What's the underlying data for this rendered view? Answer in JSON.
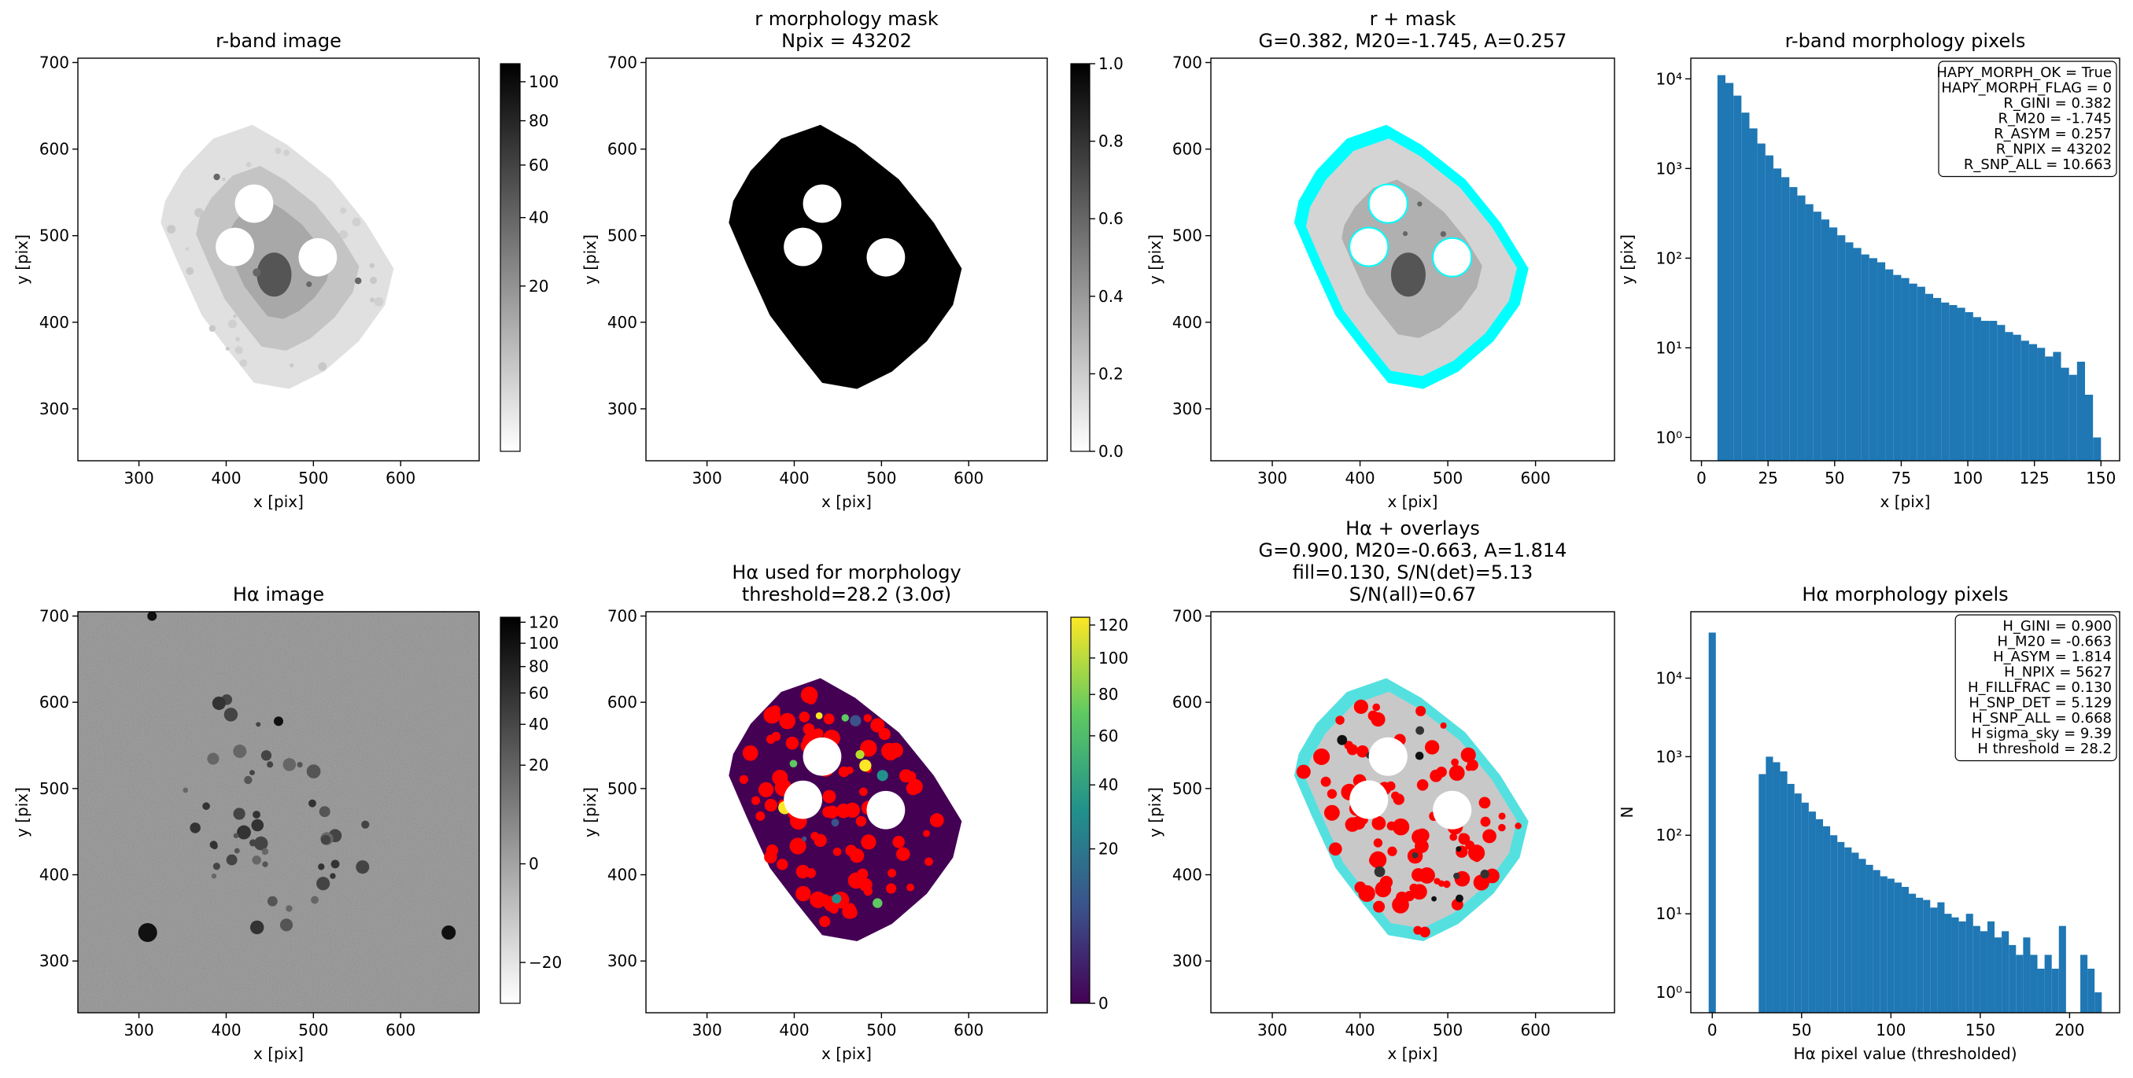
{
  "chart_data": [
    {
      "type": "image",
      "title": [
        "r-band image"
      ],
      "xlabel": "x [pix]",
      "ylabel": "y [pix]",
      "xlim": [
        230,
        690
      ],
      "ylim": [
        240,
        705
      ],
      "xticks": [
        300,
        400,
        500,
        600
      ],
      "yticks": [
        300,
        400,
        500,
        600,
        700
      ],
      "cmap": "gray_r",
      "cscale": "sqrt",
      "clim": [
        0,
        110
      ],
      "cticks": [
        20,
        40,
        60,
        80,
        100
      ]
    },
    {
      "type": "image",
      "title": [
        "r morphology mask",
        "Npix = 43202"
      ],
      "xlabel": "x [pix]",
      "ylabel": "y [pix]",
      "xlim": [
        230,
        690
      ],
      "ylim": [
        240,
        705
      ],
      "xticks": [
        300,
        400,
        500,
        600
      ],
      "yticks": [
        300,
        400,
        500,
        600,
        700
      ],
      "cmap": "gray_r",
      "cscale": "linear",
      "clim": [
        0,
        1
      ],
      "cticks": [
        {
          "value": 0,
          "label": "0.0"
        },
        0.2,
        0.4,
        0.6,
        0.8,
        {
          "value": 1,
          "label": "1.0"
        }
      ]
    },
    {
      "type": "image",
      "title": [
        "r + mask",
        "G=0.382, M20=-1.745, A=0.257"
      ],
      "xlabel": "x [pix]",
      "ylabel": "y [pix]",
      "xlim": [
        230,
        690
      ],
      "ylim": [
        240,
        705
      ],
      "xticks": [
        300,
        400,
        500,
        600
      ],
      "yticks": [
        300,
        400,
        500,
        600,
        700
      ],
      "overlay_color": "#00ffff"
    },
    {
      "type": "histogram",
      "title": [
        "r-band morphology pixels"
      ],
      "xlabel": "x [pix]",
      "ylabel": "y [pix]",
      "color": "#1f77b4",
      "log_y": true,
      "xlim": [
        -4,
        157
      ],
      "ylim": [
        0.55,
        17000
      ],
      "xticks": [
        0,
        25,
        50,
        75,
        100,
        125,
        150
      ],
      "yticks": [
        {
          "value": 1,
          "label": "10⁰"
        },
        {
          "value": 10,
          "label": "10¹"
        },
        {
          "value": 100,
          "label": "10²"
        },
        {
          "value": 1000,
          "label": "10³"
        },
        {
          "value": 10000,
          "label": "10⁴"
        }
      ],
      "bins": [
        6,
        9,
        12,
        15,
        18,
        21,
        24,
        27,
        30,
        33,
        36,
        39,
        42,
        45,
        48,
        51,
        54,
        57,
        60,
        63,
        66,
        69,
        72,
        75,
        78,
        81,
        84,
        87,
        90,
        93,
        96,
        99,
        102,
        105,
        108,
        111,
        114,
        117,
        120,
        123,
        126,
        129,
        132,
        135,
        138,
        141,
        144,
        147,
        150
      ],
      "counts": [
        11000,
        9000,
        6500,
        4200,
        2800,
        1900,
        1400,
        1000,
        800,
        620,
        500,
        400,
        330,
        270,
        220,
        180,
        150,
        130,
        110,
        100,
        90,
        75,
        65,
        60,
        52,
        48,
        40,
        36,
        32,
        30,
        28,
        25,
        22,
        20,
        20,
        18,
        15,
        14,
        12,
        11,
        10,
        8,
        9,
        6,
        5,
        7,
        3,
        1
      ],
      "annotation_lines": [
        "HAPY_MORPH_OK = True",
        "HAPY_MORPH_FLAG = 0",
        "R_GINI = 0.382",
        "R_M20 = -1.745",
        "R_ASYM = 0.257",
        "R_NPIX = 43202",
        "R_SNP_ALL = 10.663"
      ]
    },
    {
      "type": "image",
      "title": [
        "Hα image"
      ],
      "xlabel": "x [pix]",
      "ylabel": "y [pix]",
      "xlim": [
        230,
        690
      ],
      "ylim": [
        240,
        705
      ],
      "xticks": [
        300,
        400,
        500,
        600
      ],
      "yticks": [
        300,
        400,
        500,
        600,
        700
      ],
      "cmap": "gray_r",
      "cscale": "sqrt",
      "clim": [
        -40,
        125
      ],
      "cticks": [
        {
          "value": -20,
          "label": "−20"
        },
        0,
        20,
        40,
        60,
        80,
        100,
        120
      ]
    },
    {
      "type": "image",
      "title": [
        "Hα used for morphology",
        "threshold=28.2 (3.0σ)"
      ],
      "xlabel": "x [pix]",
      "ylabel": "y [pix]",
      "xlim": [
        230,
        690
      ],
      "ylim": [
        240,
        705
      ],
      "xticks": [
        300,
        400,
        500,
        600
      ],
      "yticks": [
        300,
        400,
        500,
        600,
        700
      ],
      "cmap": "viridis",
      "cscale": "sqrt",
      "clim": [
        0,
        125
      ],
      "cticks": [
        0,
        20,
        40,
        60,
        80,
        100,
        120
      ]
    },
    {
      "type": "image",
      "title": [
        "Hα + overlays",
        "G=0.900, M20=-0.663, A=1.814",
        "fill=0.130, S/N(det)=5.13",
        "S/N(all)=0.67"
      ],
      "xlabel": "x [pix]",
      "ylabel": "y [pix]",
      "xlim": [
        230,
        690
      ],
      "ylim": [
        240,
        705
      ],
      "xticks": [
        300,
        400,
        500,
        600
      ],
      "yticks": [
        300,
        400,
        500,
        600,
        700
      ],
      "overlay_color": "#00ffff"
    },
    {
      "type": "histogram",
      "title": [
        "Hα morphology pixels"
      ],
      "xlabel": "Hα pixel value (thresholded)",
      "ylabel": "N",
      "color": "#1f77b4",
      "log_y": true,
      "xlim": [
        -12,
        228
      ],
      "ylim": [
        0.55,
        70000
      ],
      "xticks": [
        0,
        50,
        100,
        150,
        200
      ],
      "yticks": [
        {
          "value": 1,
          "label": "10⁰"
        },
        {
          "value": 10,
          "label": "10¹"
        },
        {
          "value": 100,
          "label": "10²"
        },
        {
          "value": 1000,
          "label": "10³"
        },
        {
          "value": 10000,
          "label": "10⁴"
        }
      ],
      "bins": [
        -2,
        2,
        6,
        10,
        14,
        18,
        22,
        26,
        30,
        34,
        38,
        42,
        46,
        50,
        54,
        58,
        62,
        66,
        70,
        74,
        78,
        82,
        86,
        90,
        94,
        98,
        102,
        106,
        110,
        114,
        118,
        122,
        126,
        130,
        134,
        138,
        142,
        146,
        150,
        154,
        158,
        162,
        166,
        170,
        174,
        178,
        182,
        186,
        190,
        194,
        198,
        202,
        206,
        210,
        214,
        218
      ],
      "counts": [
        38000,
        0,
        0,
        0,
        0,
        0,
        0,
        600,
        1000,
        850,
        650,
        450,
        340,
        260,
        200,
        160,
        130,
        100,
        82,
        70,
        60,
        50,
        42,
        36,
        30,
        28,
        25,
        22,
        18,
        16,
        15,
        12,
        14,
        10,
        9,
        8,
        10,
        7,
        6,
        8,
        5,
        6,
        4,
        3,
        5,
        3,
        2,
        3,
        2,
        7,
        0,
        0,
        3,
        2,
        1
      ],
      "annotation_lines": [
        "H_GINI = 0.900",
        "H_M20 = -0.663",
        "H_ASYM = 1.814",
        "H_NPIX = 5627",
        "H_FILLFRAC = 0.130",
        "H_SNP_DET = 5.129",
        "H_SNP_ALL = 0.668",
        "H sigma_sky = 9.39",
        "H threshold = 28.2"
      ]
    }
  ]
}
